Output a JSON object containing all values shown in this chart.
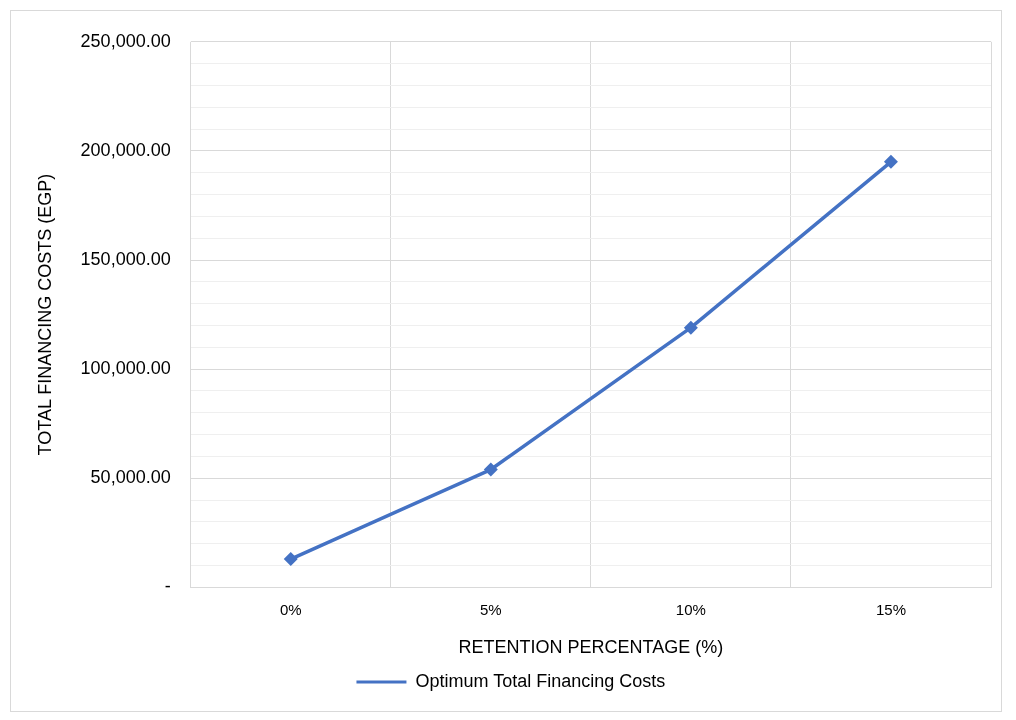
{
  "chart_data": {
    "type": "line",
    "xlabel": "RETENTION PERCENTAGE (%)",
    "ylabel": "TOTAL FINANCING COSTS (EGP)",
    "categories": [
      "0%",
      "5%",
      "10%",
      "15%"
    ],
    "series": [
      {
        "name": "Optimum Total Financing Costs",
        "color": "#4472c4",
        "values": [
          13000,
          54000,
          119000,
          195000
        ]
      }
    ],
    "ylim": [
      0,
      250000
    ],
    "yticks": [
      {
        "value": 0,
        "label": "-"
      },
      {
        "value": 10000,
        "label": null
      },
      {
        "value": 20000,
        "label": null
      },
      {
        "value": 30000,
        "label": null
      },
      {
        "value": 40000,
        "label": null
      },
      {
        "value": 50000,
        "label": "50,000.00"
      },
      {
        "value": 60000,
        "label": null
      },
      {
        "value": 70000,
        "label": null
      },
      {
        "value": 80000,
        "label": null
      },
      {
        "value": 90000,
        "label": null
      },
      {
        "value": 100000,
        "label": "100,000.00"
      },
      {
        "value": 110000,
        "label": null
      },
      {
        "value": 120000,
        "label": null
      },
      {
        "value": 130000,
        "label": null
      },
      {
        "value": 140000,
        "label": null
      },
      {
        "value": 150000,
        "label": "150,000.00"
      },
      {
        "value": 160000,
        "label": null
      },
      {
        "value": 170000,
        "label": null
      },
      {
        "value": 180000,
        "label": null
      },
      {
        "value": 190000,
        "label": null
      },
      {
        "value": 200000,
        "label": "200,000.00"
      },
      {
        "value": 210000,
        "label": null
      },
      {
        "value": 220000,
        "label": null
      },
      {
        "value": 230000,
        "label": null
      },
      {
        "value": 240000,
        "label": null
      },
      {
        "value": 250000,
        "label": "250,000.00"
      }
    ],
    "grid": true,
    "legend": "bottom",
    "marker": "diamond",
    "line_style": "solid"
  }
}
